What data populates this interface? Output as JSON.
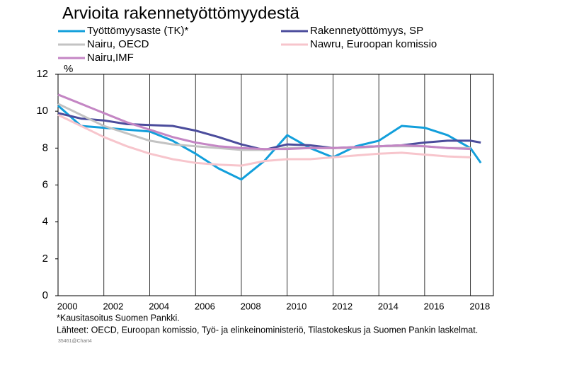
{
  "chart_data": {
    "type": "line",
    "title": "Arvioita rakennetyöttömyydestä",
    "y_unit": "%",
    "footnote": "*Kausitasoitus Suomen Pankki.",
    "source": "Lähteet: OECD, Euroopan komissio, Työ- ja elinkeinoministeriö, Tilastokeskus ja Suomen Pankin laskelmat.",
    "chart_id": "35461@Chart4",
    "xlim": [
      2000,
      2019
    ],
    "xticks": [
      2000,
      2002,
      2004,
      2006,
      2008,
      2010,
      2012,
      2014,
      2016,
      2018
    ],
    "ylim": [
      0,
      12
    ],
    "yticks": [
      0,
      2,
      4,
      6,
      8,
      10,
      12
    ],
    "grid": "x",
    "series": [
      {
        "name": "Työttömyysaste (TK)*",
        "color": "#129fdb",
        "x": [
          2000,
          2001,
          2002,
          2003,
          2004,
          2005,
          2006,
          2007,
          2008,
          2009,
          2010,
          2011,
          2012,
          2013,
          2014,
          2015,
          2016,
          2017,
          2018,
          2018.45
        ],
        "values": [
          10.3,
          9.2,
          9.1,
          9.0,
          8.9,
          8.4,
          7.7,
          6.9,
          6.3,
          7.3,
          8.7,
          8.0,
          7.5,
          8.1,
          8.4,
          9.2,
          9.1,
          8.7,
          8.0,
          7.2
        ]
      },
      {
        "name": "Rakennetyöttömyys, SP",
        "color": "#4b4c9c",
        "x": [
          2000,
          2001,
          2002,
          2003,
          2004,
          2005,
          2006,
          2007,
          2008,
          2009,
          2010,
          2011,
          2012,
          2013,
          2014,
          2015,
          2016,
          2017,
          2018,
          2018.45
        ],
        "values": [
          9.9,
          9.6,
          9.5,
          9.3,
          9.25,
          9.2,
          8.95,
          8.6,
          8.2,
          7.9,
          8.2,
          8.15,
          8.0,
          8.05,
          8.1,
          8.15,
          8.3,
          8.4,
          8.4,
          8.3
        ]
      },
      {
        "name": "Nairu, OECD",
        "color": "#c3c3c3",
        "x": [
          2000,
          2001,
          2002,
          2003,
          2004,
          2005,
          2006,
          2007,
          2008,
          2009,
          2010,
          2011,
          2012,
          2013,
          2014,
          2015,
          2016,
          2017,
          2018
        ],
        "values": [
          10.4,
          9.8,
          9.2,
          8.8,
          8.4,
          8.2,
          8.1,
          8.0,
          7.9,
          7.9,
          8.0,
          8.0,
          8.0,
          8.0,
          8.1,
          8.1,
          8.1,
          8.0,
          8.0
        ]
      },
      {
        "name": "Nawru, Euroopan komissio",
        "color": "#f7c5cc",
        "x": [
          2000,
          2001,
          2002,
          2003,
          2004,
          2005,
          2006,
          2007,
          2008,
          2009,
          2010,
          2011,
          2012,
          2013,
          2014,
          2015,
          2016,
          2017,
          2018
        ],
        "values": [
          9.8,
          9.2,
          8.6,
          8.1,
          7.7,
          7.4,
          7.2,
          7.1,
          7.05,
          7.3,
          7.4,
          7.4,
          7.5,
          7.6,
          7.7,
          7.75,
          7.65,
          7.55,
          7.5
        ]
      },
      {
        "name": "Nairu,IMF",
        "color": "#c486c4",
        "x": [
          2000,
          2001,
          2002,
          2003,
          2004,
          2005,
          2006,
          2007,
          2008,
          2009,
          2010,
          2011,
          2012,
          2013,
          2014,
          2015,
          2016,
          2017,
          2018
        ],
        "values": [
          10.9,
          10.4,
          9.9,
          9.4,
          9.0,
          8.6,
          8.3,
          8.1,
          8.0,
          7.95,
          7.95,
          8.0,
          8.0,
          8.05,
          8.1,
          8.15,
          8.1,
          8.0,
          7.95
        ]
      }
    ]
  }
}
